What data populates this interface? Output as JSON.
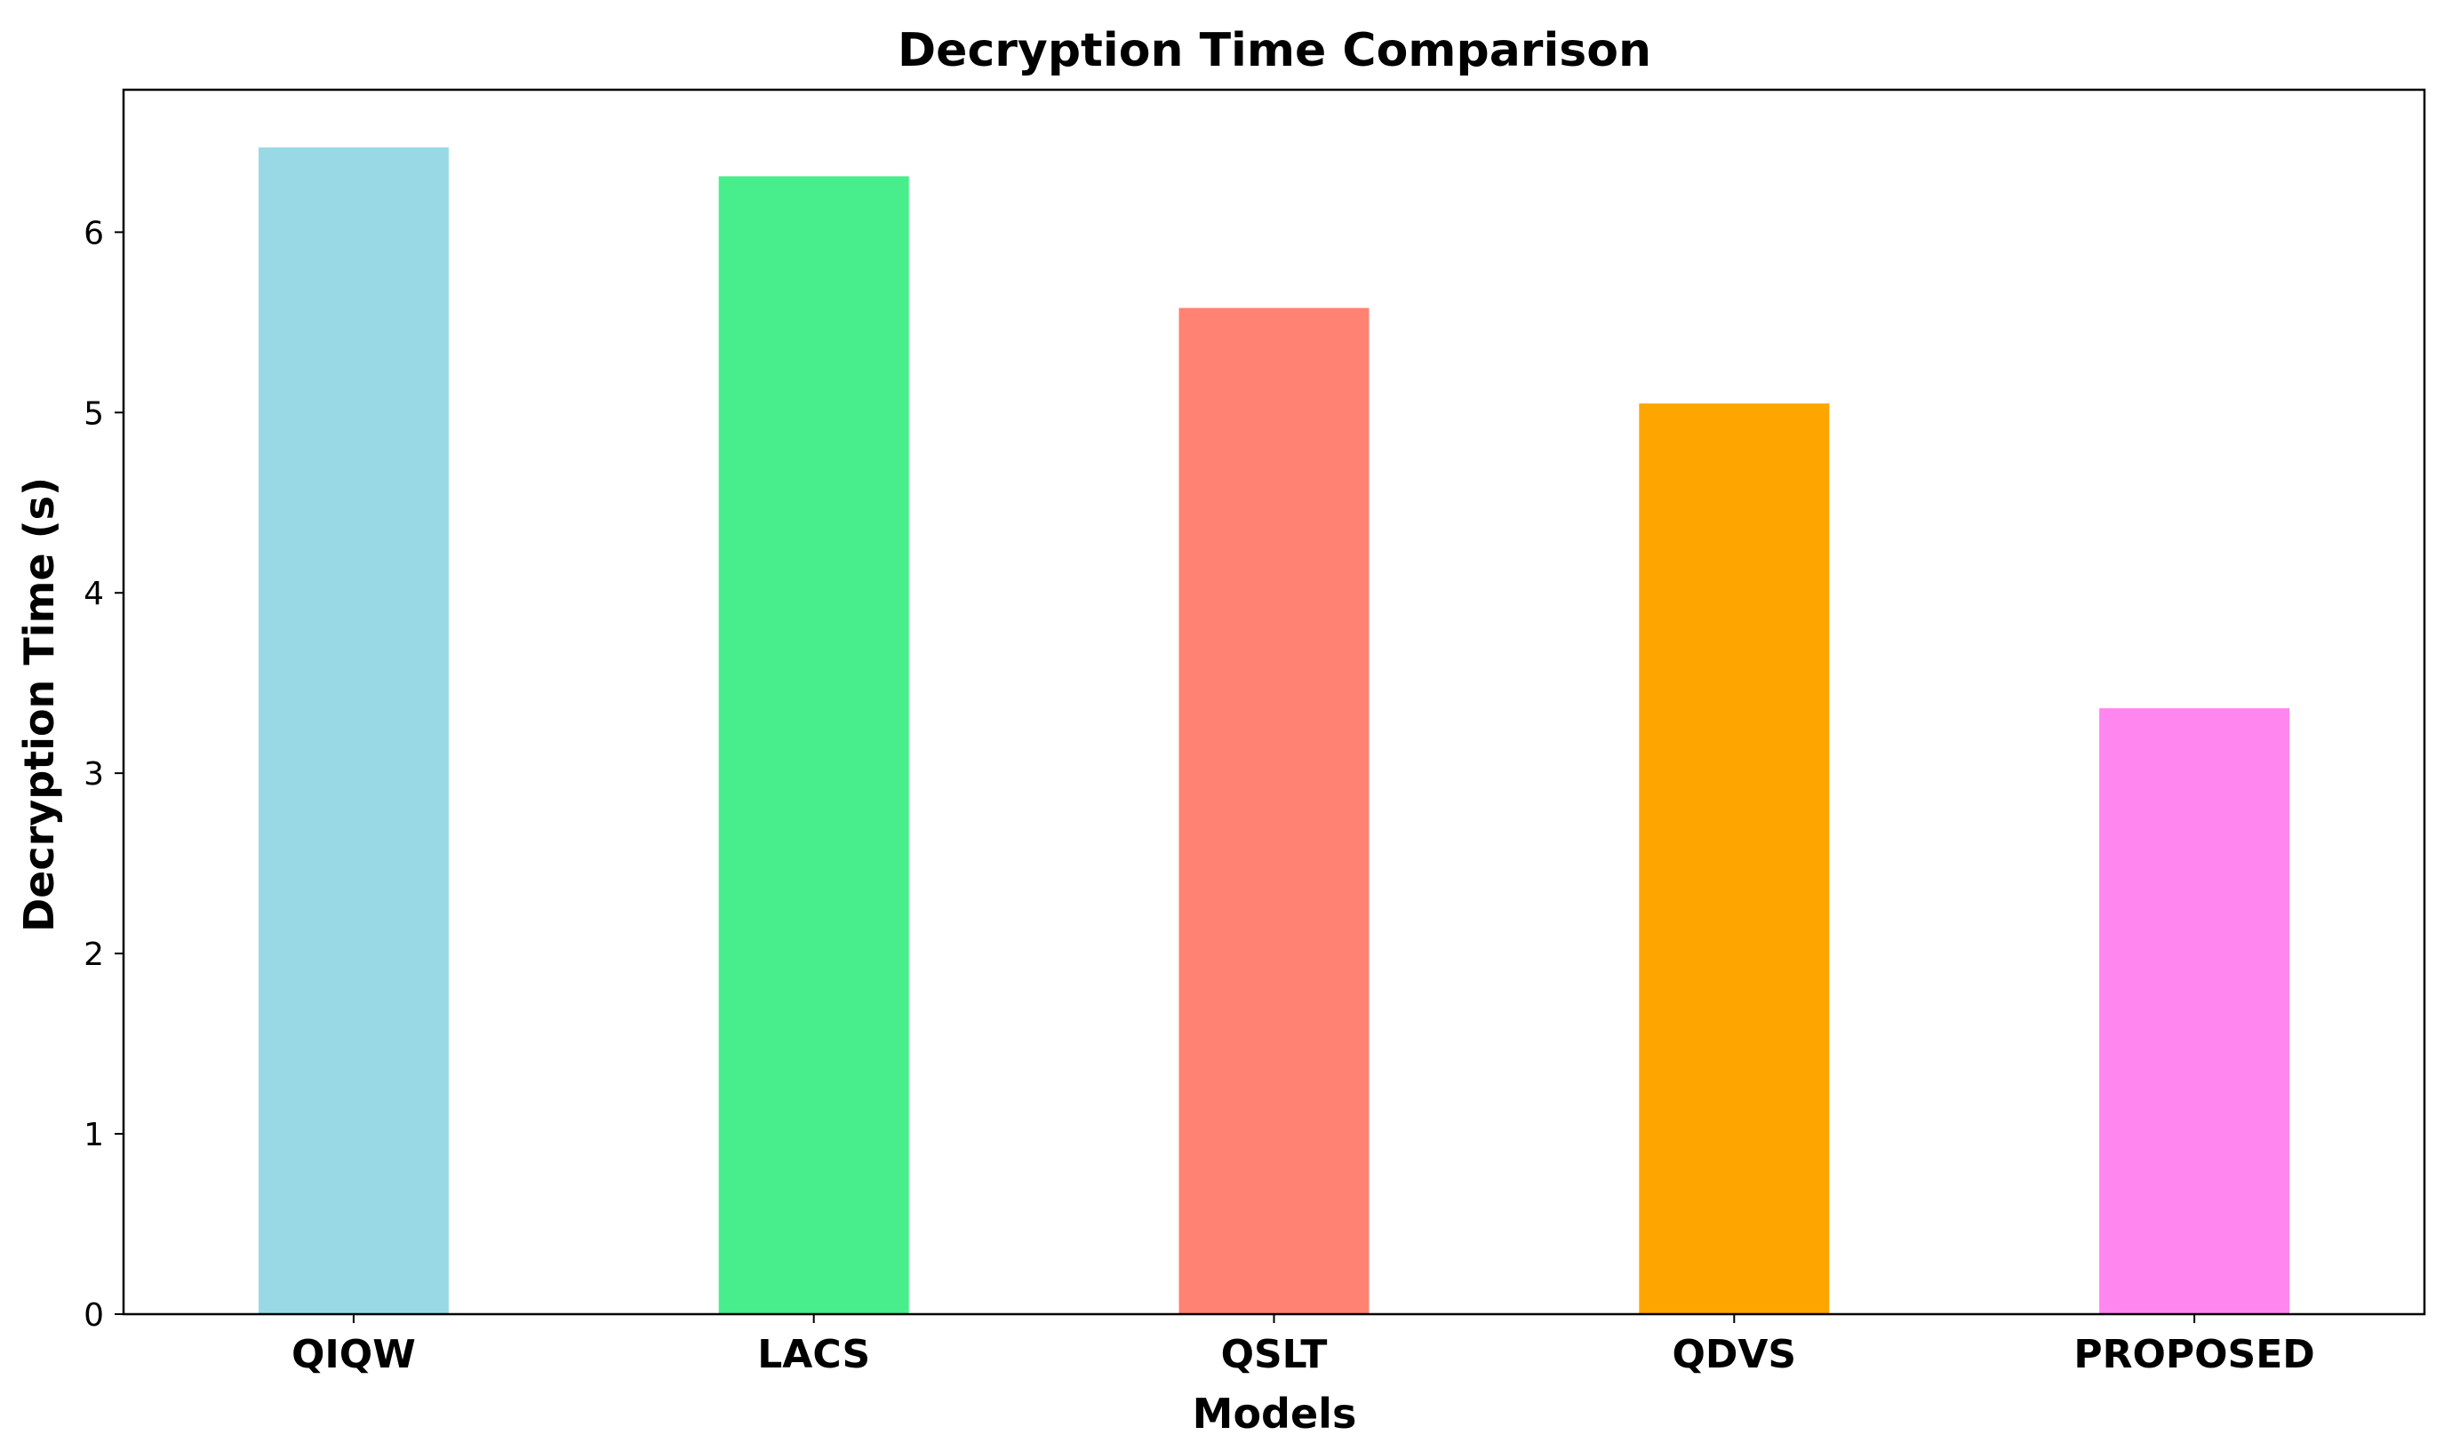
{
  "chart_data": {
    "type": "bar",
    "title": "Decryption Time Comparison",
    "xlabel": "Models",
    "ylabel": "Decryption Time (s)",
    "categories": [
      "QIQW",
      "LACS",
      "QSLT",
      "QDVS",
      "PROPOSED"
    ],
    "values": [
      6.47,
      6.31,
      5.58,
      5.05,
      3.36
    ],
    "colors": [
      "#99D9E6",
      "#48EE8C",
      "#FF8272",
      "#FFA500",
      "#FF86EE"
    ],
    "y_ticks": [
      "0",
      "1",
      "2",
      "3",
      "4",
      "5",
      "6"
    ],
    "ylim": [
      0,
      6.79
    ],
    "grid": false,
    "legend": "none"
  }
}
